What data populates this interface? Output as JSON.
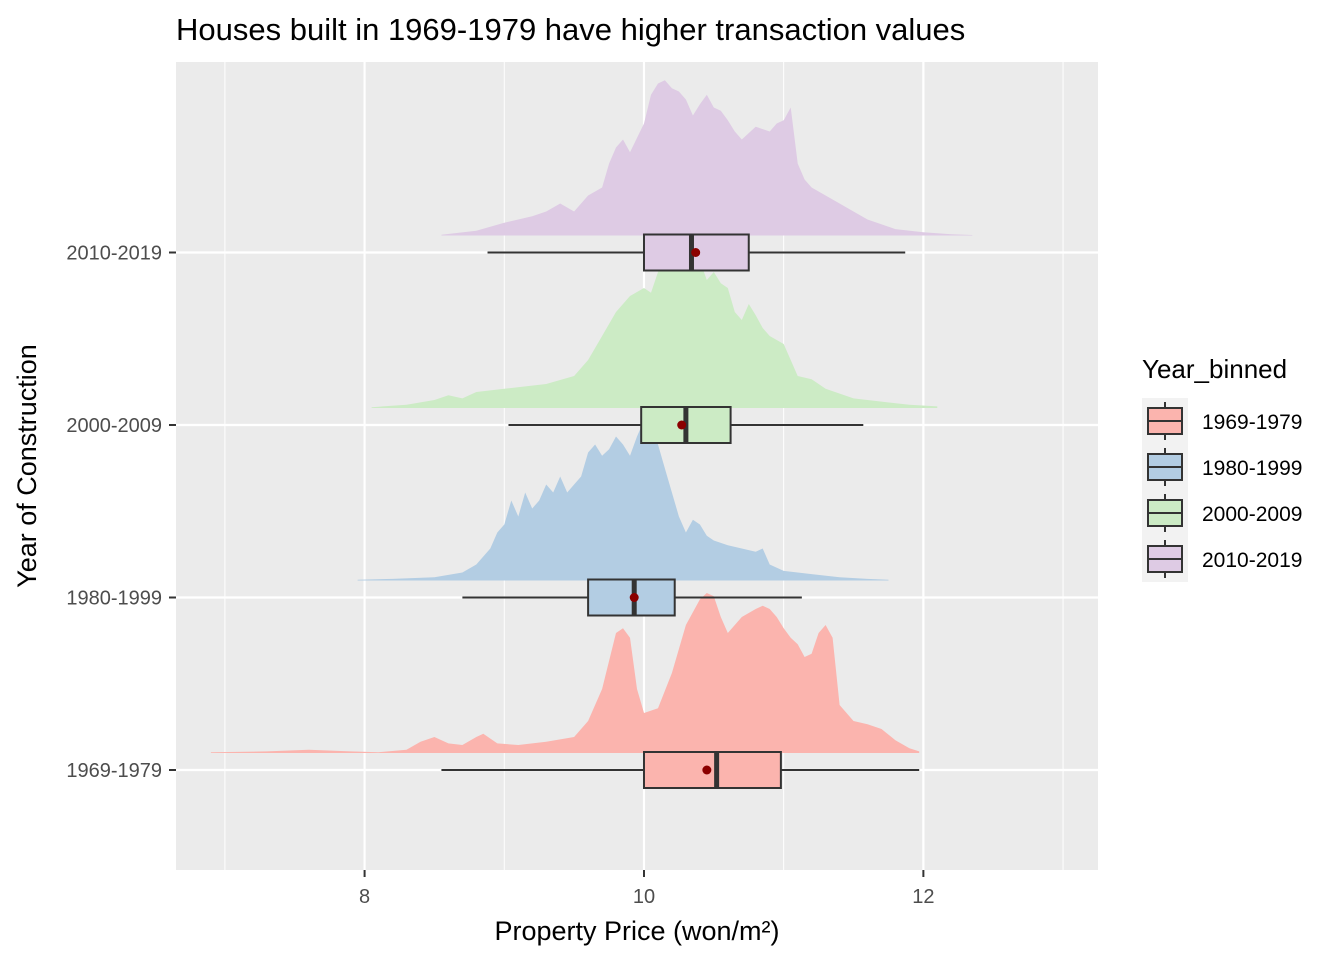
{
  "chart_data": {
    "type": "raincloud",
    "title": "Houses built in 1969-1979 have higher transaction values",
    "xlabel": "Property Price (won/m²)",
    "ylabel": "Year of Construction",
    "xlim": [
      6.65,
      13.25
    ],
    "x_ticks": [
      8,
      10,
      12
    ],
    "x_tick_labels": [
      "8",
      "10",
      "12"
    ],
    "categories": [
      "1969-1979",
      "1980-1999",
      "2000-2009",
      "2010-2019"
    ],
    "legend": {
      "title": "Year_binned",
      "position": "right",
      "entries": [
        "1969-1979",
        "1980-1999",
        "2000-2009",
        "2010-2019"
      ]
    },
    "colors": {
      "1969-1979": "#FBB4AE",
      "1980-1999": "#B3CDE3",
      "2000-2009": "#CCEBC5",
      "2010-2019": "#DECBE4",
      "panel_background": "#EBEBEB",
      "grid": "#FFFFFF",
      "box_line": "#333333",
      "mean_point": "#8B0000"
    },
    "grid": true,
    "series": [
      {
        "category": "1969-1979",
        "box": {
          "whisker_low": 8.55,
          "q1": 10.0,
          "median": 10.52,
          "q3": 10.98,
          "whisker_high": 11.97
        },
        "mean": 10.45,
        "density": {
          "x": [
            6.9,
            7.3,
            7.6,
            7.9,
            8.1,
            8.3,
            8.4,
            8.5,
            8.6,
            8.7,
            8.8,
            8.85,
            8.95,
            9.1,
            9.3,
            9.5,
            9.6,
            9.7,
            9.8,
            9.85,
            9.9,
            9.95,
            10.0,
            10.1,
            10.2,
            10.3,
            10.4,
            10.45,
            10.5,
            10.55,
            10.6,
            10.65,
            10.7,
            10.8,
            10.85,
            10.9,
            10.95,
            11.0,
            11.05,
            11.1,
            11.15,
            11.2,
            11.25,
            11.3,
            11.35,
            11.4,
            11.5,
            11.6,
            11.7,
            11.8,
            11.9,
            11.97
          ],
          "y": [
            0.005,
            0.01,
            0.02,
            0.01,
            0.005,
            0.02,
            0.07,
            0.1,
            0.06,
            0.05,
            0.1,
            0.12,
            0.06,
            0.05,
            0.07,
            0.1,
            0.2,
            0.4,
            0.75,
            0.78,
            0.72,
            0.4,
            0.25,
            0.28,
            0.5,
            0.8,
            0.96,
            1.0,
            0.98,
            0.85,
            0.75,
            0.8,
            0.85,
            0.9,
            0.92,
            0.9,
            0.85,
            0.78,
            0.72,
            0.68,
            0.6,
            0.62,
            0.75,
            0.8,
            0.72,
            0.3,
            0.2,
            0.18,
            0.15,
            0.08,
            0.03,
            0.01
          ]
        }
      },
      {
        "category": "1980-1999",
        "box": {
          "whisker_low": 8.7,
          "q1": 9.6,
          "median": 9.93,
          "q3": 10.22,
          "whisker_high": 11.13
        },
        "mean": 9.93,
        "density": {
          "x": [
            7.95,
            8.2,
            8.5,
            8.7,
            8.8,
            8.9,
            8.95,
            9.0,
            9.05,
            9.1,
            9.15,
            9.2,
            9.25,
            9.3,
            9.35,
            9.4,
            9.45,
            9.5,
            9.55,
            9.6,
            9.65,
            9.7,
            9.75,
            9.8,
            9.85,
            9.9,
            9.95,
            10.0,
            10.05,
            10.1,
            10.15,
            10.2,
            10.25,
            10.3,
            10.35,
            10.4,
            10.45,
            10.5,
            10.6,
            10.7,
            10.8,
            10.85,
            10.9,
            11.0,
            11.2,
            11.4,
            11.6,
            11.75
          ],
          "y": [
            0.005,
            0.01,
            0.02,
            0.05,
            0.1,
            0.2,
            0.3,
            0.35,
            0.5,
            0.4,
            0.55,
            0.45,
            0.5,
            0.6,
            0.55,
            0.65,
            0.55,
            0.6,
            0.65,
            0.8,
            0.85,
            0.78,
            0.82,
            0.9,
            0.85,
            0.78,
            0.9,
            1.0,
            0.95,
            0.85,
            0.7,
            0.55,
            0.4,
            0.3,
            0.38,
            0.35,
            0.28,
            0.25,
            0.22,
            0.2,
            0.18,
            0.2,
            0.1,
            0.06,
            0.04,
            0.02,
            0.01,
            0.005
          ]
        }
      },
      {
        "category": "2000-2009",
        "box": {
          "whisker_low": 9.03,
          "q1": 9.98,
          "median": 10.3,
          "q3": 10.62,
          "whisker_high": 11.57
        },
        "mean": 10.27,
        "density": {
          "x": [
            8.05,
            8.3,
            8.5,
            8.6,
            8.7,
            8.8,
            9.0,
            9.3,
            9.5,
            9.6,
            9.7,
            9.8,
            9.85,
            9.9,
            10.0,
            10.05,
            10.1,
            10.15,
            10.2,
            10.25,
            10.3,
            10.35,
            10.4,
            10.45,
            10.5,
            10.55,
            10.6,
            10.65,
            10.7,
            10.75,
            10.8,
            10.85,
            10.9,
            11.0,
            11.05,
            11.1,
            11.2,
            11.3,
            11.5,
            11.7,
            11.9,
            12.1
          ],
          "y": [
            0.005,
            0.02,
            0.05,
            0.08,
            0.06,
            0.1,
            0.12,
            0.15,
            0.2,
            0.3,
            0.45,
            0.6,
            0.65,
            0.7,
            0.75,
            0.72,
            0.85,
            0.9,
            1.0,
            0.95,
            0.9,
            0.98,
            0.92,
            0.8,
            0.85,
            0.78,
            0.75,
            0.6,
            0.55,
            0.65,
            0.58,
            0.5,
            0.45,
            0.4,
            0.3,
            0.2,
            0.18,
            0.12,
            0.06,
            0.04,
            0.02,
            0.01
          ]
        }
      },
      {
        "category": "2010-2019",
        "box": {
          "whisker_low": 8.88,
          "q1": 10.0,
          "median": 10.34,
          "q3": 10.75,
          "whisker_high": 11.87
        },
        "mean": 10.37,
        "density": {
          "x": [
            8.55,
            8.8,
            9.0,
            9.2,
            9.3,
            9.4,
            9.5,
            9.6,
            9.7,
            9.75,
            9.8,
            9.85,
            9.9,
            10.0,
            10.05,
            10.1,
            10.15,
            10.2,
            10.25,
            10.3,
            10.35,
            10.4,
            10.45,
            10.5,
            10.55,
            10.6,
            10.65,
            10.7,
            10.8,
            10.9,
            10.95,
            11.0,
            11.05,
            11.1,
            11.15,
            11.2,
            11.3,
            11.4,
            11.5,
            11.6,
            11.8,
            12.0,
            12.2,
            12.35
          ],
          "y": [
            0.005,
            0.03,
            0.08,
            0.12,
            0.15,
            0.2,
            0.15,
            0.25,
            0.3,
            0.45,
            0.55,
            0.6,
            0.52,
            0.7,
            0.88,
            0.95,
            0.97,
            0.92,
            0.9,
            0.85,
            0.75,
            0.82,
            0.88,
            0.8,
            0.78,
            0.72,
            0.65,
            0.6,
            0.68,
            0.65,
            0.7,
            0.72,
            0.8,
            0.45,
            0.35,
            0.3,
            0.25,
            0.2,
            0.15,
            0.1,
            0.04,
            0.02,
            0.008,
            0.003
          ]
        }
      }
    ]
  }
}
